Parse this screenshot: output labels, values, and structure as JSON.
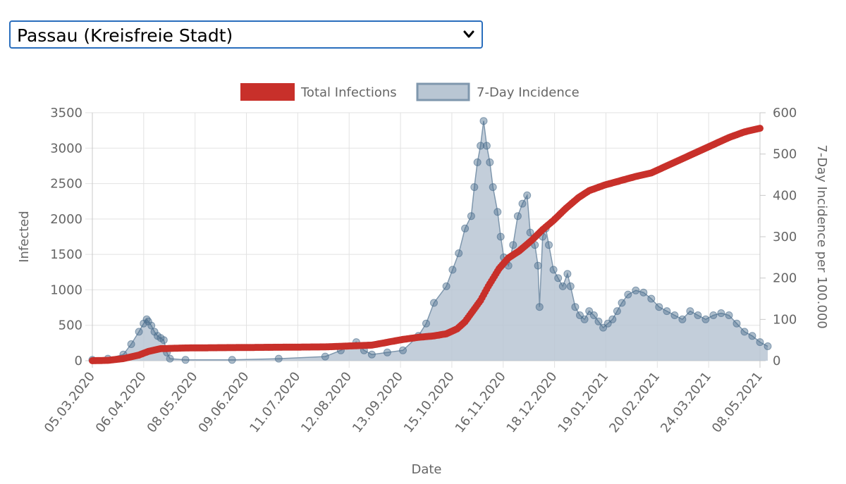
{
  "region_select": {
    "selected": "Passau (Kreisfreie Stadt)"
  },
  "chart_data": {
    "type": "line",
    "title": "",
    "legend_position": "top",
    "xlabel": "Date",
    "ylabel_left": "Infected",
    "ylabel_right": "7-Day Incidence per 100.000",
    "ylim_left": [
      0,
      3500
    ],
    "ylim_right": [
      0,
      600
    ],
    "yticks_left": [
      "0",
      "500",
      "1000",
      "1500",
      "2000",
      "2500",
      "3000",
      "3500"
    ],
    "yticks_right": [
      "0",
      "100",
      "200",
      "300",
      "400",
      "500",
      "600"
    ],
    "x_ticks": [
      "05.03.2020",
      "06.04.2020",
      "08.05.2020",
      "09.06.2020",
      "11.07.2020",
      "12.08.2020",
      "13.09.2020",
      "15.10.2020",
      "16.11.2020",
      "18.12.2020",
      "19.01.2021",
      "20.02.2021",
      "24.03.2021",
      "08.05.2021"
    ],
    "x_start": "05.03.2020",
    "x_end": "08.05.2021",
    "colors": {
      "total": "#c8302a",
      "incidence_fill": "#b9c6d3",
      "incidence_line": "#7f97ad",
      "incidence_point": "#4a6d8c"
    },
    "series": [
      {
        "name": "Total Infections",
        "axis": "left",
        "points": [
          [
            0,
            0
          ],
          [
            10,
            5
          ],
          [
            20,
            30
          ],
          [
            30,
            80
          ],
          [
            36,
            130
          ],
          [
            44,
            170
          ],
          [
            60,
            180
          ],
          [
            90,
            185
          ],
          [
            120,
            190
          ],
          [
            150,
            195
          ],
          [
            180,
            220
          ],
          [
            190,
            260
          ],
          [
            200,
            300
          ],
          [
            210,
            330
          ],
          [
            220,
            350
          ],
          [
            228,
            380
          ],
          [
            235,
            450
          ],
          [
            240,
            550
          ],
          [
            245,
            700
          ],
          [
            250,
            850
          ],
          [
            255,
            1050
          ],
          [
            262,
            1300
          ],
          [
            268,
            1450
          ],
          [
            275,
            1550
          ],
          [
            283,
            1700
          ],
          [
            290,
            1850
          ],
          [
            297,
            1980
          ],
          [
            305,
            2150
          ],
          [
            313,
            2300
          ],
          [
            320,
            2400
          ],
          [
            330,
            2480
          ],
          [
            340,
            2540
          ],
          [
            350,
            2600
          ],
          [
            360,
            2650
          ],
          [
            370,
            2750
          ],
          [
            380,
            2850
          ],
          [
            390,
            2950
          ],
          [
            400,
            3050
          ],
          [
            410,
            3150
          ],
          [
            420,
            3230
          ],
          [
            430,
            3280
          ],
          [
            435,
            3300
          ]
        ]
      },
      {
        "name": "7-Day Incidence",
        "axis": "right",
        "points": [
          [
            0,
            2
          ],
          [
            10,
            5
          ],
          [
            20,
            15
          ],
          [
            25,
            40
          ],
          [
            30,
            70
          ],
          [
            33,
            90
          ],
          [
            35,
            100
          ],
          [
            36,
            95
          ],
          [
            38,
            85
          ],
          [
            40,
            70
          ],
          [
            42,
            60
          ],
          [
            44,
            55
          ],
          [
            46,
            50
          ],
          [
            48,
            20
          ],
          [
            50,
            5
          ],
          [
            60,
            2
          ],
          [
            90,
            2
          ],
          [
            120,
            5
          ],
          [
            150,
            10
          ],
          [
            160,
            25
          ],
          [
            170,
            45
          ],
          [
            175,
            25
          ],
          [
            180,
            15
          ],
          [
            190,
            20
          ],
          [
            200,
            25
          ],
          [
            210,
            60
          ],
          [
            215,
            90
          ],
          [
            220,
            140
          ],
          [
            228,
            180
          ],
          [
            232,
            220
          ],
          [
            236,
            260
          ],
          [
            240,
            320
          ],
          [
            244,
            350
          ],
          [
            246,
            420
          ],
          [
            248,
            480
          ],
          [
            250,
            520
          ],
          [
            252,
            580
          ],
          [
            254,
            520
          ],
          [
            256,
            480
          ],
          [
            258,
            420
          ],
          [
            261,
            360
          ],
          [
            263,
            300
          ],
          [
            265,
            250
          ],
          [
            268,
            230
          ],
          [
            271,
            280
          ],
          [
            274,
            350
          ],
          [
            277,
            380
          ],
          [
            280,
            400
          ],
          [
            282,
            310
          ],
          [
            285,
            280
          ],
          [
            287,
            230
          ],
          [
            288,
            130
          ],
          [
            290,
            300
          ],
          [
            292,
            320
          ],
          [
            294,
            280
          ],
          [
            297,
            220
          ],
          [
            300,
            200
          ],
          [
            303,
            180
          ],
          [
            306,
            210
          ],
          [
            308,
            180
          ],
          [
            311,
            130
          ],
          [
            314,
            110
          ],
          [
            317,
            100
          ],
          [
            320,
            120
          ],
          [
            323,
            110
          ],
          [
            326,
            95
          ],
          [
            329,
            80
          ],
          [
            332,
            90
          ],
          [
            335,
            100
          ],
          [
            338,
            120
          ],
          [
            341,
            140
          ],
          [
            345,
            160
          ],
          [
            350,
            170
          ],
          [
            355,
            165
          ],
          [
            360,
            150
          ],
          [
            365,
            130
          ],
          [
            370,
            120
          ],
          [
            375,
            110
          ],
          [
            380,
            100
          ],
          [
            385,
            120
          ],
          [
            390,
            110
          ],
          [
            395,
            100
          ],
          [
            400,
            110
          ],
          [
            405,
            115
          ],
          [
            410,
            110
          ],
          [
            415,
            90
          ],
          [
            420,
            70
          ],
          [
            425,
            60
          ],
          [
            430,
            45
          ],
          [
            435,
            35
          ]
        ]
      }
    ]
  }
}
